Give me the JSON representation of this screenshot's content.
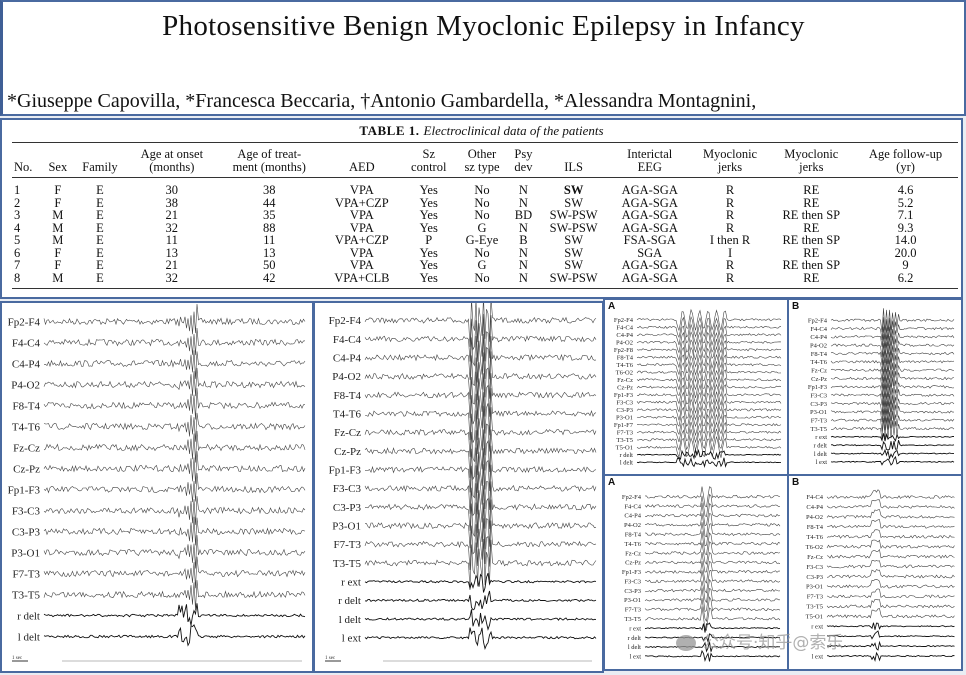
{
  "title": "Photosensitive Benign Myoclonic Epilepsy in Infancy",
  "authors": "*Giuseppe Capovilla, *Francesca Beccaria, †Antonio Gambardella, *Alessandra Montagnini,",
  "table": {
    "label": "TABLE 1.",
    "caption": "Electroclinical data of the patients",
    "headers": [
      [
        "No."
      ],
      [
        "Sex"
      ],
      [
        "Family"
      ],
      [
        "Age at onset",
        "(months)"
      ],
      [
        "Age of treat-",
        "ment (months)"
      ],
      [
        "AED"
      ],
      [
        "Sz",
        "control"
      ],
      [
        "Other",
        "sz type"
      ],
      [
        "Psy",
        "dev"
      ],
      [
        "ILS"
      ],
      [
        "Interictal",
        "EEG"
      ],
      [
        "Myoclonic",
        "jerks"
      ],
      [
        "Myoclonic",
        "jerks"
      ],
      [
        "Age follow-up",
        "(yr)"
      ]
    ],
    "rows": [
      [
        "1",
        "F",
        "E",
        "30",
        "38",
        "VPA",
        "Yes",
        "No",
        "N",
        "SW",
        "AGA-SGA",
        "R",
        "RE",
        "4.6"
      ],
      [
        "2",
        "F",
        "E",
        "38",
        "44",
        "VPA+CZP",
        "Yes",
        "No",
        "N",
        "SW",
        "AGA-SGA",
        "R",
        "RE",
        "5.2"
      ],
      [
        "3",
        "M",
        "E",
        "21",
        "35",
        "VPA",
        "Yes",
        "No",
        "BD",
        "SW-PSW",
        "AGA-SGA",
        "R",
        "RE then SP",
        "7.1"
      ],
      [
        "4",
        "M",
        "E",
        "32",
        "88",
        "VPA",
        "Yes",
        "G",
        "N",
        "SW-PSW",
        "AGA-SGA",
        "R",
        "RE",
        "9.3"
      ],
      [
        "5",
        "M",
        "E",
        "11",
        "11",
        "VPA+CZP",
        "P",
        "G-Eye",
        "B",
        "SW",
        "FSA-SGA",
        "I then R",
        "RE then SP",
        "14.0"
      ],
      [
        "6",
        "F",
        "E",
        "13",
        "13",
        "VPA",
        "Yes",
        "No",
        "N",
        "SW",
        "SGA",
        "I",
        "RE",
        "20.0"
      ],
      [
        "7",
        "F",
        "E",
        "21",
        "50",
        "VPA",
        "Yes",
        "G",
        "N",
        "SW",
        "AGA-SGA",
        "R",
        "RE then SP",
        "9"
      ],
      [
        "8",
        "M",
        "E",
        "32",
        "42",
        "VPA+CLB",
        "Yes",
        "No",
        "N",
        "SW-PSW",
        "AGA-SGA",
        "R",
        "RE",
        "6.2"
      ]
    ]
  },
  "eeg": {
    "p1": {
      "scale": "1 sec",
      "channels": [
        "Fp2-F4",
        "F4-C4",
        "C4-P4",
        "P4-O2",
        "F8-T4",
        "T4-T6",
        "Fz-Cz",
        "Cz-Pz",
        "Fp1-F3",
        "F3-C3",
        "C3-P3",
        "P3-O1",
        "F7-T3",
        "T3-T5",
        "r delt",
        "l delt"
      ]
    },
    "p2": {
      "scale": "1 sec",
      "channels": [
        "Fp2-F4",
        "F4-C4",
        "C4-P4",
        "P4-O2",
        "F8-T4",
        "T4-T6",
        "Fz-Cz",
        "Cz-Pz",
        "Fp1-F3",
        "F3-C3",
        "C3-P3",
        "P3-O1",
        "F7-T3",
        "T3-T5",
        "r ext",
        "r delt",
        "l delt",
        "l ext"
      ]
    },
    "p3a": {
      "label": "A",
      "channels": [
        "Fp2-F4",
        "F4-C4",
        "C4-P4",
        "P4-O2",
        "Fp2-F8",
        "F8-T4",
        "T4-T6",
        "T6-O2",
        "Fz-Cz",
        "Cz-Pz",
        "Fp1-F3",
        "F3-C3",
        "C3-P3",
        "P3-O1",
        "Fp1-F7",
        "F7-T3",
        "T3-T5",
        "T5-O1",
        "r delt",
        "l delt"
      ]
    },
    "p3b": {
      "label": "B",
      "channels": [
        "Fp2-F4",
        "F4-C4",
        "C4-P4",
        "P4-O2",
        "F8-T4",
        "T4-T6",
        "Fz-Cz",
        "Cz-Pz",
        "Fp1-F3",
        "F3-C3",
        "C3-P3",
        "P3-O1",
        "F7-T3",
        "T3-T5",
        "r ext",
        "r delt",
        "l delt",
        "l ext"
      ]
    },
    "p4a": {
      "label": "A",
      "channels": [
        "Fp2-F4",
        "F4-C4",
        "C4-P4",
        "P4-O2",
        "F8-T4",
        "T4-T6",
        "Fz-Cz",
        "Cz-Pz",
        "Fp1-F3",
        "F3-C3",
        "C3-P3",
        "P3-O1",
        "F7-T3",
        "T3-T5",
        "r ext",
        "r delt",
        "l delt",
        "l ext"
      ]
    },
    "p4b": {
      "label": "B",
      "channels": [
        "F4-C4",
        "C4-P4",
        "P4-O2",
        "F8-T4",
        "T4-T6",
        "T6-O2",
        "Fz-Cz",
        "F3-C3",
        "C3-P3",
        "P3-O1",
        "F7-T3",
        "T3-T5",
        "T5-O1",
        "r ext",
        "",
        "",
        "l ext"
      ]
    }
  },
  "watermark": "公众号·知乎@索乐"
}
